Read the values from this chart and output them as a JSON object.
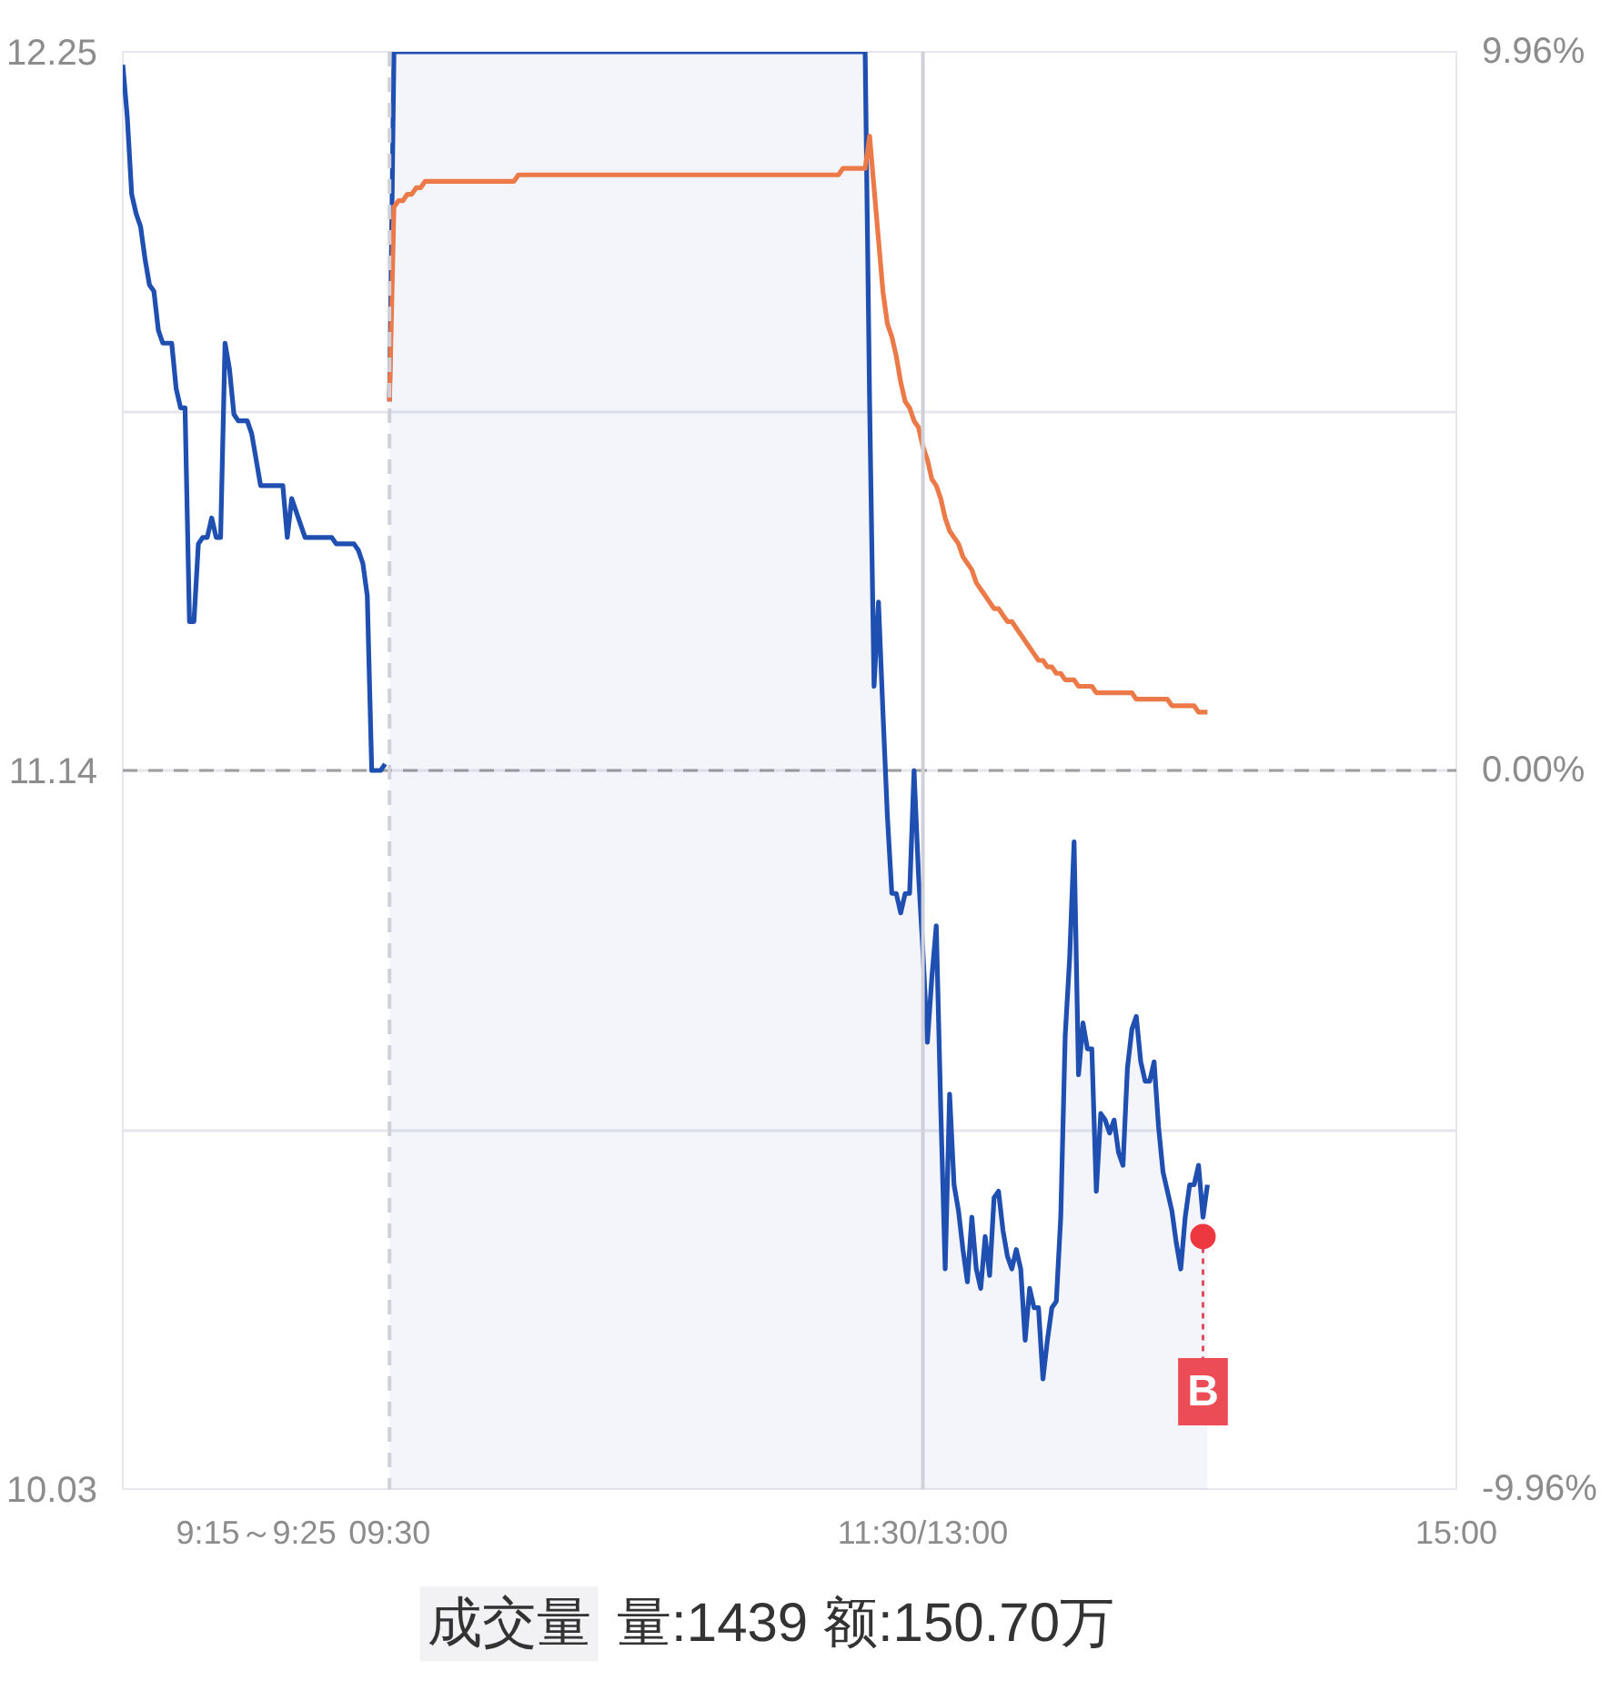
{
  "chart_data": [
    {
      "type": "line",
      "categories": [
        null,
        null,
        null,
        null,
        null,
        null,
        null,
        null,
        null,
        null,
        null,
        null,
        null,
        null,
        null,
        null,
        null,
        null,
        null,
        null,
        null,
        null,
        null,
        null,
        null,
        null,
        null,
        null,
        null,
        null,
        "9:15～9:25",
        null,
        null,
        null,
        null,
        null,
        null,
        null,
        null,
        null,
        null,
        null,
        null,
        null,
        null,
        null,
        null,
        null,
        null,
        null,
        null,
        null,
        null,
        null,
        null,
        null,
        null,
        null,
        null,
        null,
        "09:30",
        null,
        null,
        null,
        null,
        null,
        null,
        null,
        null,
        null,
        null,
        null,
        null,
        null,
        null,
        null,
        null,
        null,
        null,
        null,
        null,
        null,
        null,
        null,
        null,
        null,
        null,
        null,
        null,
        null,
        null,
        null,
        null,
        null,
        null,
        null,
        null,
        null,
        null,
        null,
        null,
        null,
        null,
        null,
        null,
        null,
        null,
        null,
        null,
        null,
        null,
        null,
        null,
        null,
        null,
        null,
        null,
        null,
        null,
        null,
        null,
        null,
        null,
        null,
        null,
        null,
        null,
        null,
        null,
        null,
        null,
        null,
        null,
        null,
        null,
        null,
        null,
        null,
        null,
        null,
        null,
        null,
        null,
        null,
        null,
        null,
        null,
        null,
        null,
        null,
        null,
        null,
        null,
        null,
        null,
        null,
        null,
        null,
        null,
        null,
        null,
        null,
        null,
        null,
        null,
        null,
        null,
        null,
        null,
        null,
        null,
        null,
        null,
        null,
        null,
        null,
        null,
        null,
        null,
        null,
        "11:30/13:00",
        null,
        null,
        null,
        null,
        null,
        null,
        null,
        null,
        null,
        null,
        null,
        null,
        null,
        null,
        null,
        null,
        null,
        null,
        null,
        null,
        null,
        null,
        null,
        null,
        null,
        null,
        null,
        null,
        null,
        null,
        null,
        null,
        null,
        null,
        null,
        null,
        null,
        null,
        null,
        null,
        null,
        null,
        null,
        null,
        null,
        null,
        null,
        null,
        null,
        null,
        null,
        null,
        null,
        null,
        null,
        null,
        null,
        null,
        null,
        null,
        null,
        null,
        null,
        null,
        null,
        null,
        null,
        null,
        null,
        null,
        null,
        null,
        null,
        null,
        null,
        null,
        null,
        null,
        null,
        null,
        null,
        null,
        null,
        null,
        null,
        null,
        null,
        null,
        null,
        null,
        null,
        null,
        null,
        null,
        null,
        null,
        null,
        null,
        null,
        null,
        null,
        null,
        null,
        null,
        null,
        null,
        null,
        null,
        null,
        null,
        null,
        null,
        null,
        null,
        null,
        null,
        null,
        null,
        null,
        "15:00"
      ],
      "ylim": [
        10.03,
        12.25
      ],
      "yticks": [
        10.03,
        {
          "value": 10.585,
          "label": null
        },
        11.14,
        {
          "value": 11.695,
          "label": null
        },
        12.25
      ],
      "y2lim": [
        -9.96,
        9.96
      ],
      "y2ticks": [
        {
          "value": -9.96,
          "label": "-9.96%"
        },
        {
          "value": 0,
          "label": "0.00%"
        },
        {
          "value": 9.96,
          "label": "9.96%"
        }
      ],
      "grid": "y",
      "ref_lines": [
        {
          "axis": "y",
          "value": 11.14,
          "line_style": "dashed",
          "color": "#9e9e9e"
        },
        {
          "axis": "x",
          "value": "09:30",
          "line_style": "dashed",
          "color": "#d0d0da"
        },
        {
          "axis": "x",
          "value": "11:30/13:00",
          "color": "#d0d0da"
        }
      ],
      "series": [
        {
          "type": "line",
          "color": "#1f4fb0",
          "values": [
            12.23,
            12.15,
            12.03,
            12.0,
            11.98,
            11.93,
            11.89,
            11.88,
            11.82,
            11.8,
            11.8,
            11.8,
            11.73,
            11.7,
            11.7,
            11.37,
            11.37,
            11.49,
            11.5,
            11.5,
            11.53,
            11.5,
            11.5,
            11.8,
            11.76,
            11.69,
            11.68,
            11.68,
            11.68,
            11.66,
            11.62,
            11.58,
            11.58,
            11.58,
            11.58,
            11.58,
            11.58,
            11.5,
            11.56,
            11.54,
            11.52,
            11.5,
            11.5,
            11.5,
            11.5,
            11.5,
            11.5,
            11.5,
            11.49,
            11.49,
            11.49,
            11.49,
            11.49,
            11.48,
            11.46,
            11.41,
            11.14,
            11.14,
            11.14,
            11.15,
            null,
            null,
            null,
            null,
            null,
            null,
            null,
            null,
            null,
            null,
            null,
            null,
            null,
            null,
            null,
            null,
            null,
            null,
            null,
            null,
            null,
            null,
            null,
            null,
            null,
            null,
            null,
            null,
            null,
            null,
            null,
            null,
            null,
            null,
            null,
            null,
            null,
            null,
            null,
            null,
            null,
            null,
            null,
            null,
            null,
            null,
            null,
            null,
            null,
            null,
            null,
            null,
            null,
            null,
            null,
            null,
            null,
            null,
            null,
            null,
            null,
            null,
            null,
            null,
            null,
            null,
            null,
            null,
            null,
            null,
            null,
            null,
            null,
            null,
            null,
            null,
            null,
            null,
            null,
            null,
            null,
            null,
            null,
            null,
            null,
            null,
            null,
            null,
            null,
            null,
            null,
            null,
            null,
            null,
            null,
            null,
            null,
            null,
            null,
            null,
            null,
            null,
            null,
            null,
            null,
            null,
            null,
            null,
            null,
            null,
            null,
            null,
            null,
            null,
            null,
            null,
            null,
            null,
            null,
            null,
            null,
            null,
            null,
            null,
            null,
            null,
            null,
            null,
            null,
            null,
            null,
            null,
            null,
            null,
            null,
            null,
            null,
            null,
            null,
            null,
            null,
            null,
            null,
            null,
            null,
            null,
            null,
            null,
            null,
            null,
            null,
            null,
            null,
            null,
            null,
            null,
            null,
            null,
            null,
            null,
            null,
            null,
            null,
            null,
            null,
            null,
            null,
            null,
            null,
            null,
            null,
            null,
            null,
            null,
            null,
            null,
            null,
            null,
            null,
            null,
            null,
            null,
            null,
            null,
            null,
            null,
            null,
            null,
            null,
            null,
            null,
            null,
            null,
            null,
            null,
            null,
            null,
            null,
            null,
            null,
            null,
            null,
            null,
            null,
            null,
            null,
            null,
            null,
            null,
            null,
            null,
            null,
            null,
            null,
            null,
            null,
            null,
            null,
            null,
            null,
            null,
            null,
            null,
            null,
            null,
            null,
            null,
            null,
            null,
            null,
            null,
            null,
            null,
            null,
            null,
            null,
            null,
            null,
            null,
            null,
            null
          ]
        },
        {
          "type": "area",
          "color": "#1f4fb0",
          "values": [
            null,
            null,
            null,
            null,
            null,
            null,
            null,
            null,
            null,
            null,
            null,
            null,
            null,
            null,
            null,
            null,
            null,
            null,
            null,
            null,
            null,
            null,
            null,
            null,
            null,
            null,
            null,
            null,
            null,
            null,
            null,
            null,
            null,
            null,
            null,
            null,
            null,
            null,
            null,
            null,
            null,
            null,
            null,
            null,
            null,
            null,
            null,
            null,
            null,
            null,
            null,
            null,
            null,
            null,
            null,
            null,
            null,
            null,
            null,
            null,
            11.71,
            12.25,
            12.25,
            12.25,
            12.25,
            12.25,
            12.25,
            12.25,
            12.25,
            12.25,
            12.25,
            12.25,
            12.25,
            12.25,
            12.25,
            12.25,
            12.25,
            12.25,
            12.25,
            12.25,
            12.25,
            12.25,
            12.25,
            12.25,
            12.25,
            12.25,
            12.25,
            12.25,
            12.25,
            12.25,
            12.25,
            12.25,
            12.25,
            12.25,
            12.25,
            12.25,
            12.25,
            12.25,
            12.25,
            12.25,
            12.25,
            12.25,
            12.25,
            12.25,
            12.25,
            12.25,
            12.25,
            12.25,
            12.25,
            12.25,
            12.25,
            12.25,
            12.25,
            12.25,
            12.25,
            12.25,
            12.25,
            12.25,
            12.25,
            12.25,
            12.25,
            12.25,
            12.25,
            12.25,
            12.25,
            12.25,
            12.25,
            12.25,
            12.25,
            12.25,
            12.25,
            12.25,
            12.25,
            12.25,
            12.25,
            12.25,
            12.25,
            12.25,
            12.25,
            12.25,
            12.25,
            12.25,
            12.25,
            12.25,
            12.25,
            12.25,
            12.25,
            12.25,
            12.25,
            12.25,
            12.25,
            12.25,
            12.25,
            12.25,
            12.25,
            12.25,
            12.25,
            12.25,
            12.25,
            12.25,
            12.25,
            12.25,
            12.25,
            12.25,
            12.25,
            12.25,
            12.25,
            12.25,
            11.71,
            11.27,
            11.4,
            11.23,
            11.07,
            10.95,
            10.95,
            10.92,
            10.95,
            10.95,
            11.14,
            10.98,
            10.86,
            10.72,
            10.82,
            10.9,
            10.62,
            10.37,
            10.64,
            10.5,
            10.46,
            10.4,
            10.35,
            10.45,
            10.37,
            10.34,
            10.42,
            10.36,
            10.48,
            10.49,
            10.43,
            10.39,
            10.37,
            10.4,
            10.37,
            10.26,
            10.34,
            10.31,
            10.31,
            10.2,
            10.26,
            10.31,
            10.32,
            10.45,
            10.73,
            10.85,
            11.03,
            10.67,
            10.75,
            10.71,
            10.71,
            10.49,
            10.61,
            10.6,
            10.58,
            10.6,
            10.55,
            10.53,
            10.68,
            10.74,
            10.76,
            10.69,
            10.66,
            10.66,
            10.69,
            10.59,
            10.52,
            10.49,
            10.46,
            10.41,
            10.37,
            10.45,
            10.5,
            10.5,
            10.53,
            10.45,
            10.5,
            null,
            null,
            null,
            null,
            null,
            null,
            null,
            null,
            null,
            null,
            null,
            null,
            null,
            null,
            null,
            null,
            null,
            null,
            null,
            null,
            null,
            null,
            null,
            null,
            null,
            null,
            null,
            null,
            null,
            null,
            null,
            null,
            null,
            null,
            null,
            null,
            null,
            null,
            null,
            null,
            null,
            null,
            null,
            null,
            null,
            null,
            null,
            null,
            null,
            null,
            null,
            null,
            null,
            null,
            null,
            null
          ]
        },
        {
          "type": "line",
          "color": "#ec7a48",
          "values": [
            null,
            null,
            null,
            null,
            null,
            null,
            null,
            null,
            null,
            null,
            null,
            null,
            null,
            null,
            null,
            null,
            null,
            null,
            null,
            null,
            null,
            null,
            null,
            null,
            null,
            null,
            null,
            null,
            null,
            null,
            null,
            null,
            null,
            null,
            null,
            null,
            null,
            null,
            null,
            null,
            null,
            null,
            null,
            null,
            null,
            null,
            null,
            null,
            null,
            null,
            null,
            null,
            null,
            null,
            null,
            null,
            null,
            null,
            null,
            null,
            11.71,
            12.01,
            12.02,
            12.02,
            12.03,
            12.03,
            12.04,
            12.04,
            12.05,
            12.05,
            12.05,
            12.05,
            12.05,
            12.05,
            12.05,
            12.05,
            12.05,
            12.05,
            12.05,
            12.05,
            12.05,
            12.05,
            12.05,
            12.05,
            12.05,
            12.05,
            12.05,
            12.05,
            12.05,
            12.06,
            12.06,
            12.06,
            12.06,
            12.06,
            12.06,
            12.06,
            12.06,
            12.06,
            12.06,
            12.06,
            12.06,
            12.06,
            12.06,
            12.06,
            12.06,
            12.06,
            12.06,
            12.06,
            12.06,
            12.06,
            12.06,
            12.06,
            12.06,
            12.06,
            12.06,
            12.06,
            12.06,
            12.06,
            12.06,
            12.06,
            12.06,
            12.06,
            12.06,
            12.06,
            12.06,
            12.06,
            12.06,
            12.06,
            12.06,
            12.06,
            12.06,
            12.06,
            12.06,
            12.06,
            12.06,
            12.06,
            12.06,
            12.06,
            12.06,
            12.06,
            12.06,
            12.06,
            12.06,
            12.06,
            12.06,
            12.06,
            12.06,
            12.06,
            12.06,
            12.06,
            12.06,
            12.06,
            12.06,
            12.06,
            12.06,
            12.06,
            12.06,
            12.06,
            12.06,
            12.06,
            12.06,
            12.06,
            12.07,
            12.07,
            12.07,
            12.07,
            12.07,
            12.07,
            12.12,
            12.04,
            11.96,
            11.88,
            11.83,
            11.81,
            11.78,
            11.74,
            11.71,
            11.7,
            11.68,
            11.67,
            11.64,
            11.62,
            11.59,
            11.58,
            11.56,
            11.53,
            11.51,
            11.5,
            11.49,
            11.47,
            11.46,
            11.45,
            11.43,
            11.42,
            11.41,
            11.4,
            11.39,
            11.39,
            11.38,
            11.37,
            11.37,
            11.36,
            11.35,
            11.34,
            11.33,
            11.32,
            11.31,
            11.31,
            11.3,
            11.3,
            11.29,
            11.29,
            11.28,
            11.28,
            11.28,
            11.27,
            11.27,
            11.27,
            11.27,
            11.26,
            11.26,
            11.26,
            11.26,
            11.26,
            11.26,
            11.26,
            11.26,
            11.26,
            11.25,
            11.25,
            11.25,
            11.25,
            11.25,
            11.25,
            11.25,
            11.25,
            11.24,
            11.24,
            11.24,
            11.24,
            11.24,
            11.24,
            11.23,
            11.23,
            11.23,
            null,
            null,
            null,
            null,
            null,
            null,
            null,
            null,
            null,
            null,
            null,
            null,
            null,
            null,
            null,
            null,
            null,
            null,
            null,
            null,
            null,
            null,
            null,
            null,
            null,
            null,
            null,
            null,
            null,
            null,
            null,
            null,
            null,
            null,
            null,
            null,
            null,
            null,
            null,
            null,
            null,
            null,
            null,
            null,
            null,
            null,
            null,
            null,
            null,
            null,
            null,
            null,
            null,
            null,
            null,
            null
          ]
        },
        {
          "type": "scatter",
          "color": "#ee3840",
          "marker": "circle",
          "values": [
            null,
            null,
            null,
            null,
            null,
            null,
            null,
            null,
            null,
            null,
            null,
            null,
            null,
            null,
            null,
            null,
            null,
            null,
            null,
            null,
            null,
            null,
            null,
            null,
            null,
            null,
            null,
            null,
            null,
            null,
            null,
            null,
            null,
            null,
            null,
            null,
            null,
            null,
            null,
            null,
            null,
            null,
            null,
            null,
            null,
            null,
            null,
            null,
            null,
            null,
            null,
            null,
            null,
            null,
            null,
            null,
            null,
            null,
            null,
            null,
            null,
            null,
            null,
            null,
            null,
            null,
            null,
            null,
            null,
            null,
            null,
            null,
            null,
            null,
            null,
            null,
            null,
            null,
            null,
            null,
            null,
            null,
            null,
            null,
            null,
            null,
            null,
            null,
            null,
            null,
            null,
            null,
            null,
            null,
            null,
            null,
            null,
            null,
            null,
            null,
            null,
            null,
            null,
            null,
            null,
            null,
            null,
            null,
            null,
            null,
            null,
            null,
            null,
            null,
            null,
            null,
            null,
            null,
            null,
            null,
            null,
            null,
            null,
            null,
            null,
            null,
            null,
            null,
            null,
            null,
            null,
            null,
            null,
            null,
            null,
            null,
            null,
            null,
            null,
            null,
            null,
            null,
            null,
            null,
            null,
            null,
            null,
            null,
            null,
            null,
            null,
            null,
            null,
            null,
            null,
            null,
            null,
            null,
            null,
            null,
            null,
            null,
            null,
            null,
            null,
            null,
            null,
            null,
            null,
            null,
            null,
            null,
            null,
            null,
            null,
            null,
            null,
            null,
            null,
            null,
            null,
            null,
            null,
            null,
            null,
            null,
            null,
            null,
            null,
            null,
            null,
            null,
            null,
            null,
            null,
            null,
            null,
            null,
            null,
            null,
            null,
            null,
            null,
            null,
            null,
            null,
            null,
            null,
            null,
            null,
            null,
            null,
            null,
            null,
            null,
            null,
            null,
            null,
            null,
            null,
            null,
            null,
            null,
            null,
            null,
            null,
            null,
            null,
            null,
            null,
            null,
            null,
            null,
            null,
            null,
            null,
            null,
            null,
            null,
            null,
            null,
            null,
            null,
            10.42,
            null,
            null,
            null,
            null,
            null,
            null,
            null,
            null,
            null,
            null,
            null,
            null,
            null,
            null,
            null,
            null,
            null,
            null,
            null,
            null,
            null,
            null,
            null,
            null,
            null,
            null,
            null,
            null,
            null,
            null,
            null,
            null,
            null,
            null,
            null,
            null,
            null,
            null,
            null,
            null,
            null,
            null,
            null,
            null,
            null,
            null,
            null,
            null,
            null,
            null,
            null,
            null,
            null,
            null,
            null,
            null,
            null
          ]
        }
      ],
      "annotations": [
        {
          "text": "B",
          "y": 10.42
        }
      ]
    },
    {
      "type": "other",
      "annotations": [
        "成交量",
        "量:1439 额:150.70万"
      ]
    }
  ]
}
